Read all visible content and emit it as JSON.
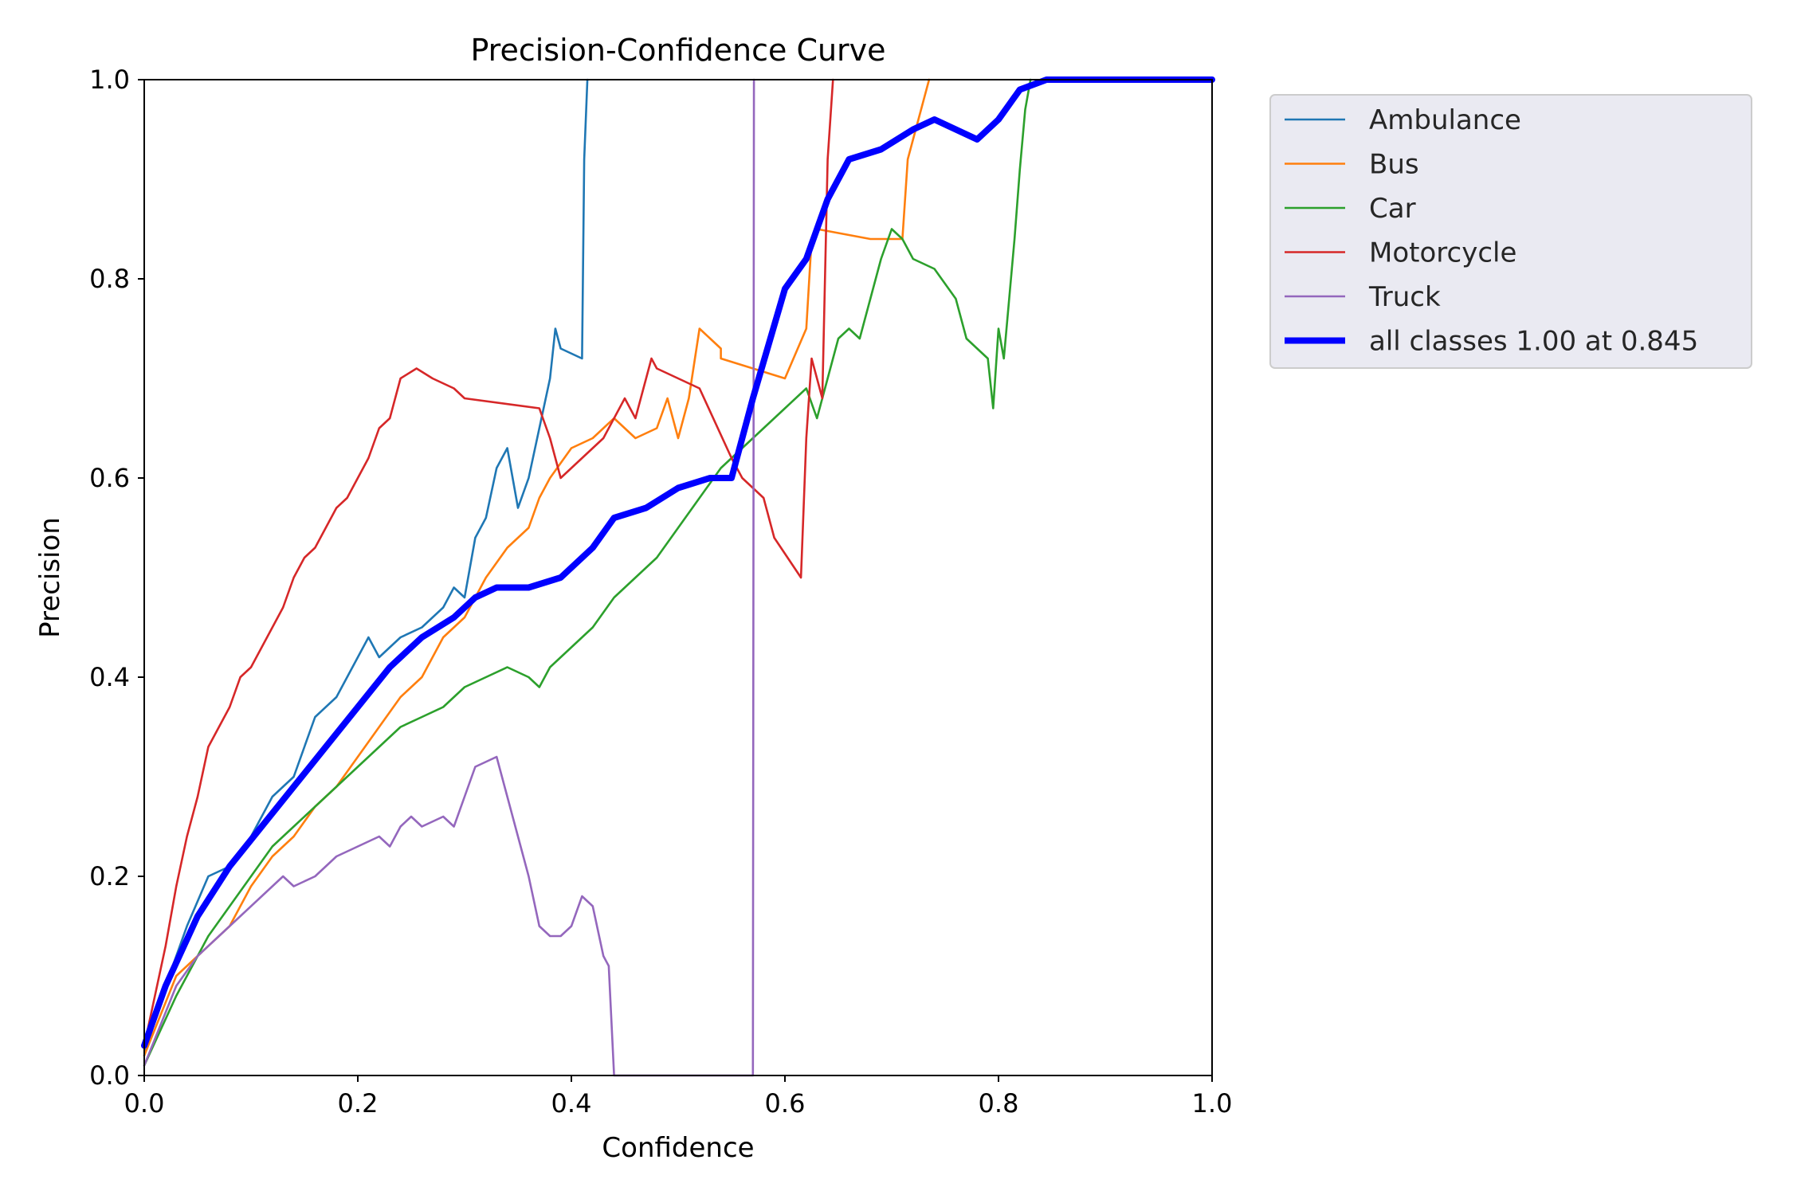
{
  "chart_data": {
    "type": "line",
    "title": "Precision-Confidence Curve",
    "xlabel": "Confidence",
    "ylabel": "Precision",
    "xlim": [
      0,
      1
    ],
    "ylim": [
      0,
      1
    ],
    "xticks": [
      "0.0",
      "0.2",
      "0.4",
      "0.6",
      "0.8",
      "1.0"
    ],
    "yticks": [
      "0.0",
      "0.2",
      "0.4",
      "0.6",
      "0.8",
      "1.0"
    ],
    "grid": false,
    "legend_position": "outside upper right",
    "series": [
      {
        "name": "Ambulance",
        "color": "#1f77b4",
        "points": [
          [
            0.0,
            0.02
          ],
          [
            0.02,
            0.09
          ],
          [
            0.04,
            0.15
          ],
          [
            0.06,
            0.2
          ],
          [
            0.08,
            0.21
          ],
          [
            0.1,
            0.24
          ],
          [
            0.12,
            0.28
          ],
          [
            0.14,
            0.3
          ],
          [
            0.15,
            0.33
          ],
          [
            0.16,
            0.36
          ],
          [
            0.18,
            0.38
          ],
          [
            0.2,
            0.42
          ],
          [
            0.21,
            0.44
          ],
          [
            0.22,
            0.42
          ],
          [
            0.24,
            0.44
          ],
          [
            0.26,
            0.45
          ],
          [
            0.28,
            0.47
          ],
          [
            0.29,
            0.49
          ],
          [
            0.3,
            0.48
          ],
          [
            0.31,
            0.54
          ],
          [
            0.32,
            0.56
          ],
          [
            0.33,
            0.61
          ],
          [
            0.34,
            0.63
          ],
          [
            0.35,
            0.57
          ],
          [
            0.36,
            0.6
          ],
          [
            0.37,
            0.65
          ],
          [
            0.38,
            0.7
          ],
          [
            0.385,
            0.75
          ],
          [
            0.39,
            0.73
          ],
          [
            0.41,
            0.72
          ],
          [
            0.412,
            0.92
          ],
          [
            0.415,
            1.0
          ]
        ]
      },
      {
        "name": "Bus",
        "color": "#ff7f0e",
        "points": [
          [
            0.0,
            0.02
          ],
          [
            0.03,
            0.1
          ],
          [
            0.05,
            0.12
          ],
          [
            0.08,
            0.15
          ],
          [
            0.1,
            0.19
          ],
          [
            0.12,
            0.22
          ],
          [
            0.14,
            0.24
          ],
          [
            0.16,
            0.27
          ],
          [
            0.18,
            0.29
          ],
          [
            0.2,
            0.32
          ],
          [
            0.22,
            0.35
          ],
          [
            0.24,
            0.38
          ],
          [
            0.26,
            0.4
          ],
          [
            0.28,
            0.44
          ],
          [
            0.3,
            0.46
          ],
          [
            0.32,
            0.5
          ],
          [
            0.34,
            0.53
          ],
          [
            0.36,
            0.55
          ],
          [
            0.37,
            0.58
          ],
          [
            0.38,
            0.6
          ],
          [
            0.4,
            0.63
          ],
          [
            0.42,
            0.64
          ],
          [
            0.44,
            0.66
          ],
          [
            0.46,
            0.64
          ],
          [
            0.48,
            0.65
          ],
          [
            0.49,
            0.68
          ],
          [
            0.5,
            0.64
          ],
          [
            0.51,
            0.68
          ],
          [
            0.52,
            0.75
          ],
          [
            0.54,
            0.73
          ],
          [
            0.54,
            0.72
          ],
          [
            0.6,
            0.7
          ],
          [
            0.62,
            0.75
          ],
          [
            0.625,
            0.84
          ],
          [
            0.63,
            0.85
          ],
          [
            0.68,
            0.84
          ],
          [
            0.71,
            0.84
          ],
          [
            0.715,
            0.92
          ],
          [
            0.735,
            1.0
          ]
        ]
      },
      {
        "name": "Car",
        "color": "#2ca02c",
        "points": [
          [
            0.0,
            0.01
          ],
          [
            0.03,
            0.08
          ],
          [
            0.06,
            0.14
          ],
          [
            0.08,
            0.17
          ],
          [
            0.1,
            0.2
          ],
          [
            0.12,
            0.23
          ],
          [
            0.14,
            0.25
          ],
          [
            0.16,
            0.27
          ],
          [
            0.18,
            0.29
          ],
          [
            0.2,
            0.31
          ],
          [
            0.22,
            0.33
          ],
          [
            0.24,
            0.35
          ],
          [
            0.26,
            0.36
          ],
          [
            0.28,
            0.37
          ],
          [
            0.3,
            0.39
          ],
          [
            0.32,
            0.4
          ],
          [
            0.34,
            0.41
          ],
          [
            0.36,
            0.4
          ],
          [
            0.37,
            0.39
          ],
          [
            0.38,
            0.41
          ],
          [
            0.39,
            0.42
          ],
          [
            0.4,
            0.43
          ],
          [
            0.42,
            0.45
          ],
          [
            0.44,
            0.48
          ],
          [
            0.46,
            0.5
          ],
          [
            0.48,
            0.52
          ],
          [
            0.5,
            0.55
          ],
          [
            0.52,
            0.58
          ],
          [
            0.54,
            0.61
          ],
          [
            0.56,
            0.63
          ],
          [
            0.58,
            0.65
          ],
          [
            0.6,
            0.67
          ],
          [
            0.62,
            0.69
          ],
          [
            0.63,
            0.66
          ],
          [
            0.64,
            0.7
          ],
          [
            0.65,
            0.74
          ],
          [
            0.66,
            0.75
          ],
          [
            0.67,
            0.74
          ],
          [
            0.68,
            0.78
          ],
          [
            0.69,
            0.82
          ],
          [
            0.7,
            0.85
          ],
          [
            0.71,
            0.84
          ],
          [
            0.72,
            0.82
          ],
          [
            0.74,
            0.81
          ],
          [
            0.76,
            0.78
          ],
          [
            0.77,
            0.74
          ],
          [
            0.79,
            0.72
          ],
          [
            0.795,
            0.67
          ],
          [
            0.8,
            0.75
          ],
          [
            0.805,
            0.72
          ],
          [
            0.81,
            0.78
          ],
          [
            0.815,
            0.84
          ],
          [
            0.82,
            0.91
          ],
          [
            0.825,
            0.97
          ],
          [
            0.83,
            1.0
          ]
        ]
      },
      {
        "name": "Motorcycle",
        "color": "#d62728",
        "points": [
          [
            0.0,
            0.03
          ],
          [
            0.02,
            0.13
          ],
          [
            0.03,
            0.19
          ],
          [
            0.04,
            0.24
          ],
          [
            0.05,
            0.28
          ],
          [
            0.06,
            0.33
          ],
          [
            0.07,
            0.35
          ],
          [
            0.08,
            0.37
          ],
          [
            0.09,
            0.4
          ],
          [
            0.1,
            0.41
          ],
          [
            0.11,
            0.43
          ],
          [
            0.12,
            0.45
          ],
          [
            0.13,
            0.47
          ],
          [
            0.14,
            0.5
          ],
          [
            0.15,
            0.52
          ],
          [
            0.16,
            0.53
          ],
          [
            0.17,
            0.55
          ],
          [
            0.18,
            0.57
          ],
          [
            0.19,
            0.58
          ],
          [
            0.2,
            0.6
          ],
          [
            0.21,
            0.62
          ],
          [
            0.22,
            0.65
          ],
          [
            0.23,
            0.66
          ],
          [
            0.24,
            0.7
          ],
          [
            0.255,
            0.71
          ],
          [
            0.27,
            0.7
          ],
          [
            0.29,
            0.69
          ],
          [
            0.3,
            0.68
          ],
          [
            0.37,
            0.67
          ],
          [
            0.38,
            0.64
          ],
          [
            0.39,
            0.6
          ],
          [
            0.41,
            0.62
          ],
          [
            0.43,
            0.64
          ],
          [
            0.45,
            0.68
          ],
          [
            0.46,
            0.66
          ],
          [
            0.47,
            0.7
          ],
          [
            0.475,
            0.72
          ],
          [
            0.48,
            0.71
          ],
          [
            0.52,
            0.69
          ],
          [
            0.55,
            0.62
          ],
          [
            0.56,
            0.6
          ],
          [
            0.58,
            0.58
          ],
          [
            0.59,
            0.54
          ],
          [
            0.615,
            0.5
          ],
          [
            0.62,
            0.64
          ],
          [
            0.625,
            0.72
          ],
          [
            0.63,
            0.7
          ],
          [
            0.635,
            0.68
          ],
          [
            0.64,
            0.92
          ],
          [
            0.645,
            1.0
          ]
        ]
      },
      {
        "name": "Truck",
        "color": "#9467bd",
        "points": [
          [
            0.0,
            0.01
          ],
          [
            0.03,
            0.09
          ],
          [
            0.05,
            0.12
          ],
          [
            0.07,
            0.14
          ],
          [
            0.09,
            0.16
          ],
          [
            0.11,
            0.18
          ],
          [
            0.13,
            0.2
          ],
          [
            0.14,
            0.19
          ],
          [
            0.16,
            0.2
          ],
          [
            0.18,
            0.22
          ],
          [
            0.2,
            0.23
          ],
          [
            0.22,
            0.24
          ],
          [
            0.23,
            0.23
          ],
          [
            0.24,
            0.25
          ],
          [
            0.25,
            0.26
          ],
          [
            0.26,
            0.25
          ],
          [
            0.28,
            0.26
          ],
          [
            0.29,
            0.25
          ],
          [
            0.3,
            0.28
          ],
          [
            0.31,
            0.31
          ],
          [
            0.33,
            0.32
          ],
          [
            0.34,
            0.28
          ],
          [
            0.35,
            0.24
          ],
          [
            0.36,
            0.2
          ],
          [
            0.37,
            0.15
          ],
          [
            0.38,
            0.14
          ],
          [
            0.39,
            0.14
          ],
          [
            0.4,
            0.15
          ],
          [
            0.41,
            0.18
          ],
          [
            0.42,
            0.17
          ],
          [
            0.43,
            0.12
          ],
          [
            0.435,
            0.11
          ],
          [
            0.44,
            0.0
          ],
          [
            0.57,
            0.0
          ],
          [
            0.571,
            1.0
          ]
        ]
      },
      {
        "name": "all classes 1.00 at 0.845",
        "color": "#0000ff",
        "bold": true,
        "points": [
          [
            0.0,
            0.03
          ],
          [
            0.02,
            0.09
          ],
          [
            0.05,
            0.16
          ],
          [
            0.08,
            0.21
          ],
          [
            0.11,
            0.25
          ],
          [
            0.14,
            0.29
          ],
          [
            0.17,
            0.33
          ],
          [
            0.2,
            0.37
          ],
          [
            0.23,
            0.41
          ],
          [
            0.26,
            0.44
          ],
          [
            0.29,
            0.46
          ],
          [
            0.31,
            0.48
          ],
          [
            0.33,
            0.49
          ],
          [
            0.36,
            0.49
          ],
          [
            0.39,
            0.5
          ],
          [
            0.42,
            0.53
          ],
          [
            0.44,
            0.56
          ],
          [
            0.47,
            0.57
          ],
          [
            0.5,
            0.59
          ],
          [
            0.53,
            0.6
          ],
          [
            0.55,
            0.6
          ],
          [
            0.57,
            0.68
          ],
          [
            0.6,
            0.79
          ],
          [
            0.62,
            0.82
          ],
          [
            0.64,
            0.88
          ],
          [
            0.66,
            0.92
          ],
          [
            0.69,
            0.93
          ],
          [
            0.72,
            0.95
          ],
          [
            0.74,
            0.96
          ],
          [
            0.76,
            0.95
          ],
          [
            0.78,
            0.94
          ],
          [
            0.8,
            0.96
          ],
          [
            0.82,
            0.99
          ],
          [
            0.845,
            1.0
          ],
          [
            1.0,
            1.0
          ]
        ]
      }
    ]
  }
}
